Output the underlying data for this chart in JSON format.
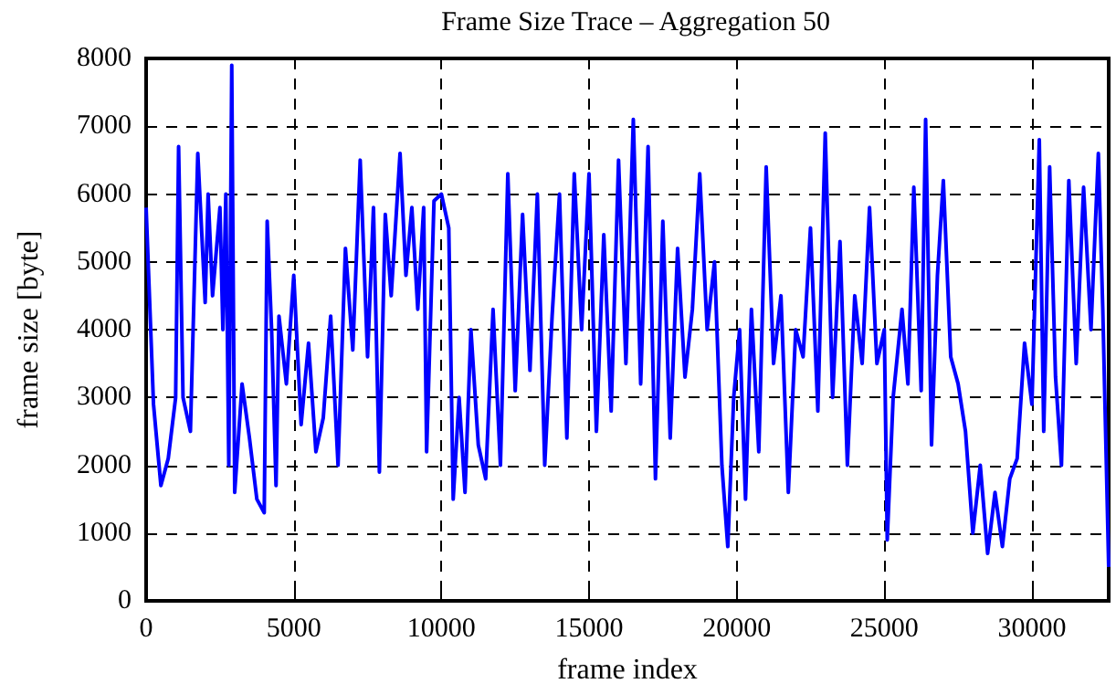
{
  "chart_data": {
    "type": "line",
    "title": "Frame Size Trace – Aggregation 50",
    "xlabel": "frame index",
    "ylabel": "frame size [byte]",
    "x": [
      0,
      250,
      500,
      750,
      1000,
      1100,
      1250,
      1500,
      1750,
      2000,
      2100,
      2250,
      2500,
      2600,
      2700,
      2800,
      2900,
      3000,
      3250,
      3500,
      3750,
      4000,
      4100,
      4250,
      4400,
      4500,
      4750,
      5000,
      5250,
      5500,
      5750,
      6000,
      6250,
      6500,
      6750,
      7000,
      7250,
      7500,
      7700,
      7900,
      8100,
      8300,
      8600,
      8800,
      9000,
      9200,
      9400,
      9500,
      9750,
      10000,
      10250,
      10400,
      10600,
      10800,
      11000,
      11250,
      11500,
      11750,
      12000,
      12250,
      12500,
      12750,
      13000,
      13250,
      13500,
      13750,
      14000,
      14250,
      14500,
      14750,
      15000,
      15250,
      15500,
      15750,
      16000,
      16250,
      16500,
      16750,
      17000,
      17250,
      17500,
      17750,
      18000,
      18250,
      18500,
      18750,
      19000,
      19250,
      19500,
      19700,
      19900,
      20100,
      20300,
      20500,
      20750,
      21000,
      21250,
      21500,
      21750,
      22000,
      22250,
      22500,
      22750,
      23000,
      23250,
      23500,
      23750,
      24000,
      24250,
      24500,
      24750,
      25000,
      25100,
      25300,
      25600,
      25800,
      26000,
      26250,
      26400,
      26600,
      26800,
      27000,
      27250,
      27500,
      27750,
      28000,
      28250,
      28500,
      28750,
      29000,
      29250,
      29500,
      29750,
      30000,
      30250,
      30400,
      30600,
      30800,
      31000,
      31250,
      31500,
      31750,
      32000,
      32250,
      32400,
      32600
    ],
    "series": [
      {
        "color": "#0000ff",
        "values": [
          5800,
          2900,
          1700,
          2100,
          3000,
          6700,
          3000,
          2500,
          6600,
          4400,
          6000,
          4500,
          5800,
          4000,
          6000,
          2000,
          7900,
          1600,
          3200,
          2400,
          1500,
          1300,
          5600,
          4000,
          1700,
          4200,
          3200,
          4800,
          2600,
          3800,
          2200,
          2700,
          4200,
          2000,
          5200,
          3700,
          6500,
          3600,
          5800,
          1900,
          5700,
          4500,
          6600,
          4800,
          5800,
          4300,
          5800,
          2200,
          5900,
          6000,
          5500,
          1500,
          3000,
          1600,
          4000,
          2300,
          1800,
          4300,
          2000,
          6300,
          3100,
          5700,
          3400,
          6000,
          2000,
          4200,
          6000,
          2400,
          6300,
          4000,
          6300,
          2500,
          5400,
          2800,
          6500,
          3500,
          7100,
          3200,
          6700,
          1800,
          5600,
          2400,
          5200,
          3300,
          4300,
          6300,
          4000,
          5000,
          2000,
          800,
          3000,
          4000,
          1500,
          4300,
          2200,
          6400,
          3500,
          4500,
          1600,
          4000,
          3600,
          5500,
          2800,
          6900,
          3000,
          5300,
          2000,
          4500,
          3500,
          5800,
          3500,
          4000,
          900,
          3000,
          4300,
          3200,
          6100,
          3100,
          7100,
          2300,
          4800,
          6200,
          3600,
          3200,
          2500,
          1000,
          2000,
          700,
          1600,
          800,
          1800,
          2100,
          3800,
          2900,
          6800,
          2500,
          6400,
          3300,
          2000,
          6200,
          3500,
          6100,
          4000,
          6600,
          4300,
          500
        ]
      }
    ],
    "xlim": [
      0,
      32600
    ],
    "xticks": [
      0,
      5000,
      10000,
      15000,
      20000,
      25000,
      30000
    ],
    "ylim": [
      0,
      8000
    ],
    "yticks": [
      0,
      1000,
      2000,
      3000,
      4000,
      5000,
      6000,
      7000,
      8000
    ],
    "grid": true,
    "line_style": "solid",
    "marker": "none"
  }
}
